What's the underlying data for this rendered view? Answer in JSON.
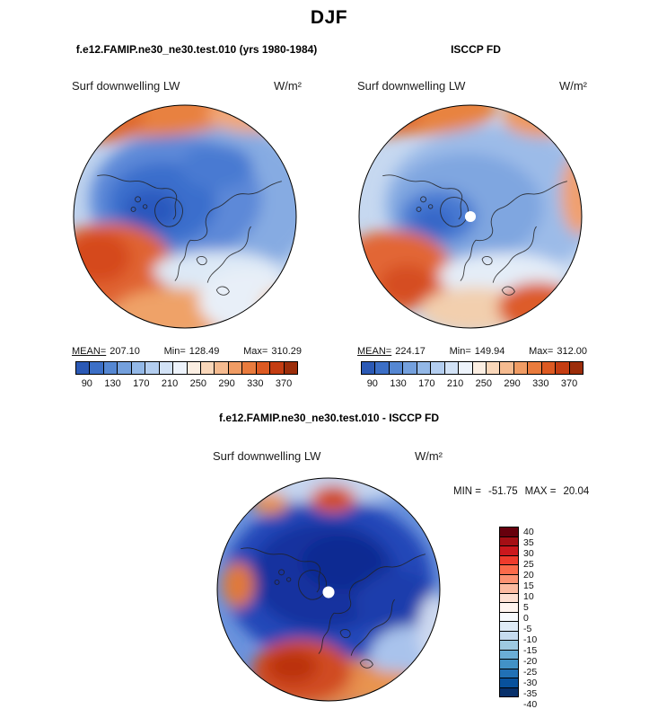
{
  "season": "DJF",
  "panels": {
    "model": {
      "title": "f.e12.FAMIP.ne30_ne30.test.010 (yrs 1980-1984)",
      "field": "Surf downwelling LW",
      "units": "W/m²",
      "stats": {
        "mean_label": "MEAN=",
        "mean": "207.10",
        "min_label": "Min=",
        "min": "128.49",
        "max_label": "Max=",
        "max": "310.29"
      }
    },
    "obs": {
      "title": "ISCCP FD",
      "field": "Surf downwelling LW",
      "units": "W/m²",
      "stats": {
        "mean_label": "MEAN=",
        "mean": "224.17",
        "min_label": "Min=",
        "min": "149.94",
        "max_label": "Max=",
        "max": "312.00"
      }
    },
    "diff": {
      "title": "f.e12.FAMIP.ne30_ne30.test.010 - ISCCP FD",
      "field": "Surf downwelling LW",
      "units": "W/m²",
      "stats": {
        "min_label": "MIN =",
        "min": "-51.75",
        "max_label": "MAX =",
        "max": "20.04"
      }
    }
  },
  "colorbars": {
    "full": {
      "orientation": "horizontal",
      "ticks": [
        "90",
        "130",
        "170",
        "210",
        "250",
        "290",
        "330",
        "370"
      ],
      "colors": [
        "#2b59b5",
        "#3c6fc6",
        "#5587d2",
        "#74a0dd",
        "#93b8e7",
        "#b3cdef",
        "#d2e2f6",
        "#edf3fb",
        "#fbeee2",
        "#f9d7ba",
        "#f5bb90",
        "#f09c64",
        "#e97b3d",
        "#dd5a22",
        "#c43d12",
        "#9c2d0a"
      ]
    },
    "diff": {
      "orientation": "vertical",
      "ticks": [
        "40",
        "35",
        "30",
        "25",
        "20",
        "15",
        "10",
        "5",
        "0",
        "-5",
        "-10",
        "-15",
        "-20",
        "-25",
        "-30",
        "-35",
        "-40"
      ],
      "colors": [
        "#67000d",
        "#a50f15",
        "#cb181d",
        "#ef3b2c",
        "#fb6a4a",
        "#fc9272",
        "#fcbba1",
        "#fee0d2",
        "#fff5f0",
        "#f7fbff",
        "#deebf7",
        "#c6dbef",
        "#9ecae1",
        "#6baed6",
        "#4292c6",
        "#2171b5",
        "#08519c",
        "#08306b"
      ]
    }
  },
  "chart_data": [
    {
      "type": "heatmap",
      "projection": "north-polar-stereographic",
      "title": "f.e12.FAMIP.ne30_ne30.test.010 (yrs 1980-1984)",
      "season": "DJF",
      "variable": "Surf downwelling LW",
      "units": "W/m²",
      "mean": 207.1,
      "min": 128.49,
      "max": 310.29,
      "colorbar_ticks": [
        90,
        130,
        170,
        210,
        250,
        290,
        330,
        370
      ],
      "colorbar_orientation": "horizontal",
      "colormap": "blue-to-red diverging"
    },
    {
      "type": "heatmap",
      "projection": "north-polar-stereographic",
      "title": "ISCCP FD",
      "season": "DJF",
      "variable": "Surf downwelling LW",
      "units": "W/m²",
      "mean": 224.17,
      "min": 149.94,
      "max": 312.0,
      "colorbar_ticks": [
        90,
        130,
        170,
        210,
        250,
        290,
        330,
        370
      ],
      "colorbar_orientation": "horizontal",
      "colormap": "blue-to-red diverging"
    },
    {
      "type": "heatmap",
      "projection": "north-polar-stereographic",
      "title": "f.e12.FAMIP.ne30_ne30.test.010 - ISCCP FD",
      "season": "DJF",
      "variable": "Surf downwelling LW",
      "units": "W/m²",
      "min": -51.75,
      "max": 20.04,
      "colorbar_ticks": [
        40,
        35,
        30,
        25,
        20,
        15,
        10,
        5,
        0,
        -5,
        -10,
        -15,
        -20,
        -25,
        -30,
        -35,
        -40
      ],
      "colorbar_orientation": "vertical",
      "colormap": "red-to-blue diverging (difference)"
    }
  ]
}
